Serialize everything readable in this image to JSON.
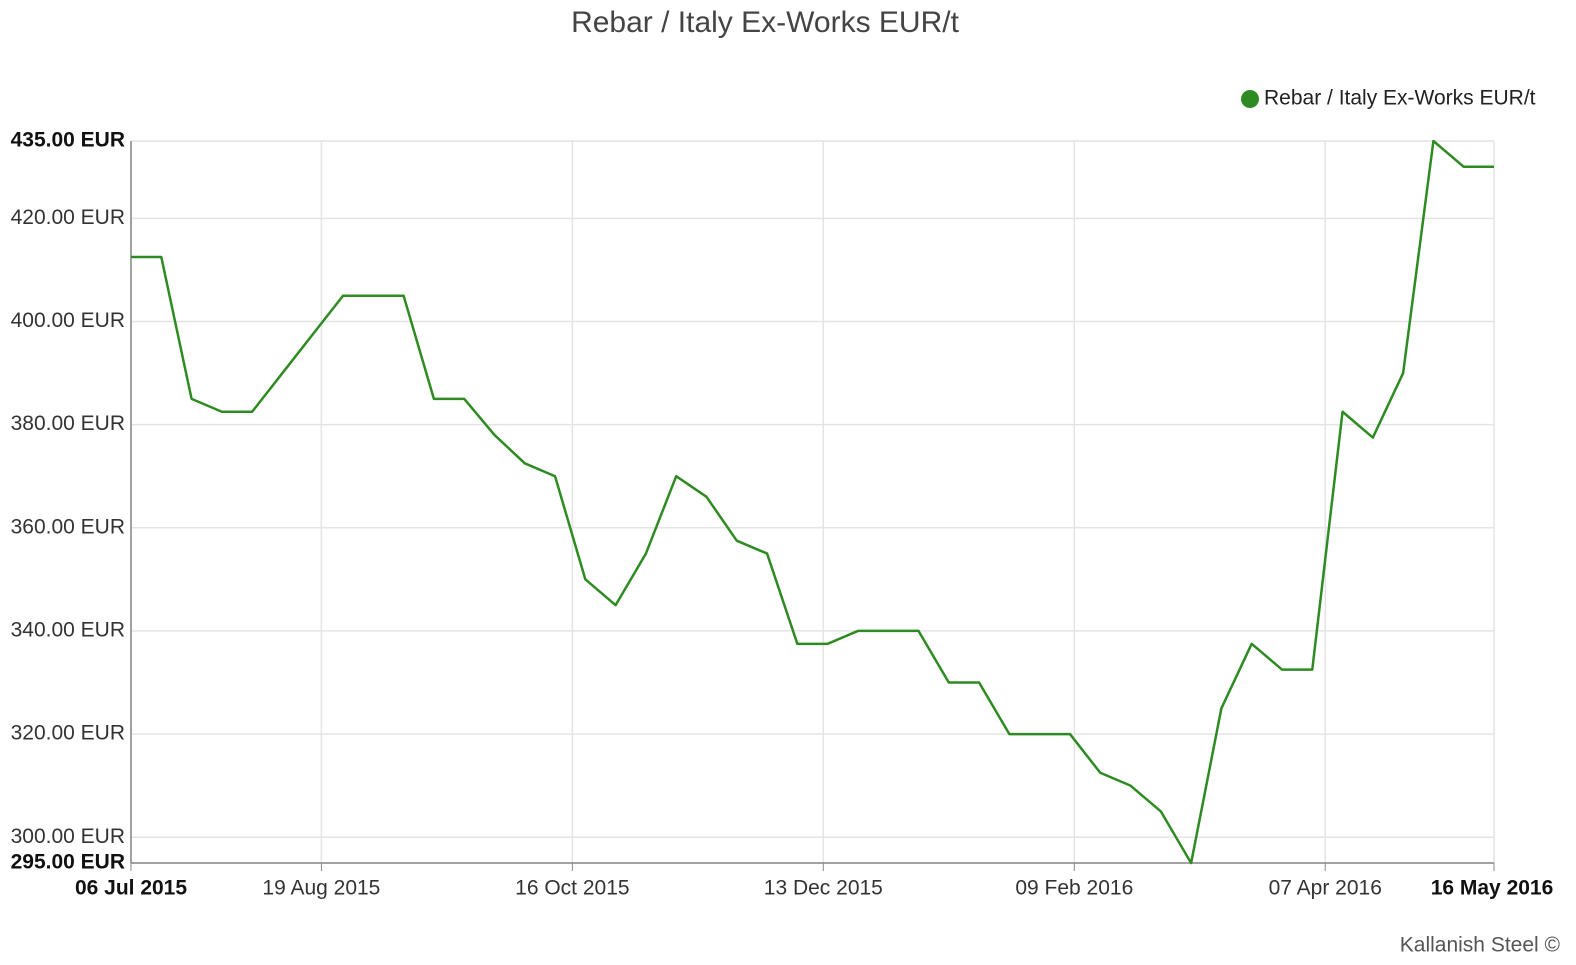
{
  "chart_data": {
    "type": "line",
    "title": "Rebar / Italy Ex-Works EUR/t",
    "source": "Kallanish Steel ©",
    "x": [
      "2015-07-06",
      "2015-07-13",
      "2015-07-20",
      "2015-07-27",
      "2015-08-03",
      "2015-08-10",
      "2015-08-17",
      "2015-08-24",
      "2015-08-31",
      "2015-09-07",
      "2015-09-14",
      "2015-09-21",
      "2015-09-28",
      "2015-10-05",
      "2015-10-12",
      "2015-10-19",
      "2015-10-26",
      "2015-11-02",
      "2015-11-09",
      "2015-11-16",
      "2015-11-23",
      "2015-11-30",
      "2015-12-07",
      "2015-12-14",
      "2015-12-21",
      "2015-12-28",
      "2016-01-04",
      "2016-01-11",
      "2016-01-18",
      "2016-01-25",
      "2016-02-01",
      "2016-02-08",
      "2016-02-15",
      "2016-02-22",
      "2016-02-29",
      "2016-03-07",
      "2016-03-14",
      "2016-03-21",
      "2016-03-28",
      "2016-04-04",
      "2016-04-11",
      "2016-04-18",
      "2016-04-25",
      "2016-05-02",
      "2016-05-09",
      "2016-05-16"
    ],
    "series": [
      {
        "name": "Rebar / Italy Ex-Works EUR/t",
        "color": "#2e8b22",
        "values": [
          412.5,
          412.5,
          385,
          382.5,
          382.5,
          390,
          397.5,
          405,
          405,
          405,
          385,
          385,
          378,
          372.5,
          370,
          350,
          345,
          355,
          370,
          366,
          357.5,
          355,
          337.5,
          337.5,
          340,
          340,
          340,
          330,
          330,
          320,
          320,
          320,
          312.5,
          310,
          305,
          295,
          325,
          337.5,
          332.5,
          332.5,
          382.5,
          377.5,
          390,
          435,
          430,
          430
        ]
      }
    ],
    "xlim": [
      "2015-07-06",
      "2016-05-16"
    ],
    "xticks": [
      {
        "value": "2015-07-06",
        "label": "06 Jul 2015"
      },
      {
        "value": "2015-08-19",
        "label": "19 Aug 2015"
      },
      {
        "value": "2015-10-16",
        "label": "16 Oct 2015"
      },
      {
        "value": "2015-12-13",
        "label": "13 Dec 2015"
      },
      {
        "value": "2016-02-09",
        "label": "09 Feb 2016"
      },
      {
        "value": "2016-04-07",
        "label": "07 Apr 2016"
      },
      {
        "value": "2016-05-16",
        "label": "16 May 2016"
      }
    ],
    "ylim": [
      295,
      435
    ],
    "yticks": [
      {
        "value": 295,
        "label": "295.00 EUR"
      },
      {
        "value": 300,
        "label": "300.00 EUR"
      },
      {
        "value": 320,
        "label": "320.00 EUR"
      },
      {
        "value": 340,
        "label": "340.00 EUR"
      },
      {
        "value": 360,
        "label": "360.00 EUR"
      },
      {
        "value": 380,
        "label": "380.00 EUR"
      },
      {
        "value": 400,
        "label": "400.00 EUR"
      },
      {
        "value": 420,
        "label": "420.00 EUR"
      },
      {
        "value": 435,
        "label": "435.00 EUR"
      }
    ],
    "grid": true,
    "legend": "top-right"
  }
}
